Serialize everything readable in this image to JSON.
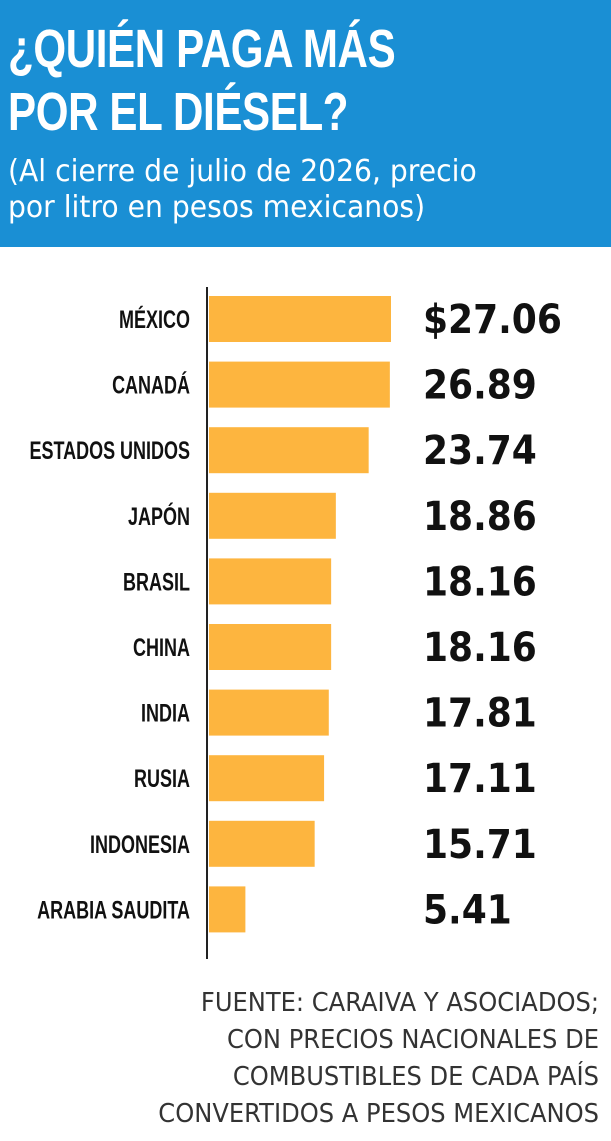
{
  "header": {
    "title_line1": "¿QUIÉN PAGA MÁS",
    "title_line2": "POR EL DIÉSEL?",
    "subtitle_line1": "(Al cierre de julio de 2026, precio",
    "subtitle_line2": "por litro en pesos mexicanos)"
  },
  "colors": {
    "header_bg": "#1a8fd4",
    "bar": "#fdb53f",
    "axis": "#222222"
  },
  "chart_data": {
    "type": "bar",
    "orientation": "horizontal",
    "categories": [
      "MÉXICO",
      "CANADÁ",
      "ESTADOS UNIDOS",
      "JAPÓN",
      "BRASIL",
      "CHINA",
      "INDIA",
      "RUSIA",
      "INDONESIA",
      "ARABIA SAUDITA"
    ],
    "values": [
      27.06,
      26.89,
      23.74,
      18.86,
      18.16,
      18.16,
      17.81,
      17.11,
      15.71,
      5.41
    ],
    "value_labels": [
      "$27.06",
      "26.89",
      "23.74",
      "18.86",
      "18.16",
      "18.16",
      "17.81",
      "17.11",
      "15.71",
      "5.41"
    ],
    "xlim": [
      0,
      27.06
    ],
    "grid": false,
    "legend": "none"
  },
  "source": {
    "line1": "FUENTE: CARAIVA Y ASOCIADOS;",
    "line2": "CON PRECIOS NACIONALES DE",
    "line3": "COMBUSTIBLES DE CADA PAÍS",
    "line4": "CONVERTIDOS A PESOS MEXICANOS"
  }
}
